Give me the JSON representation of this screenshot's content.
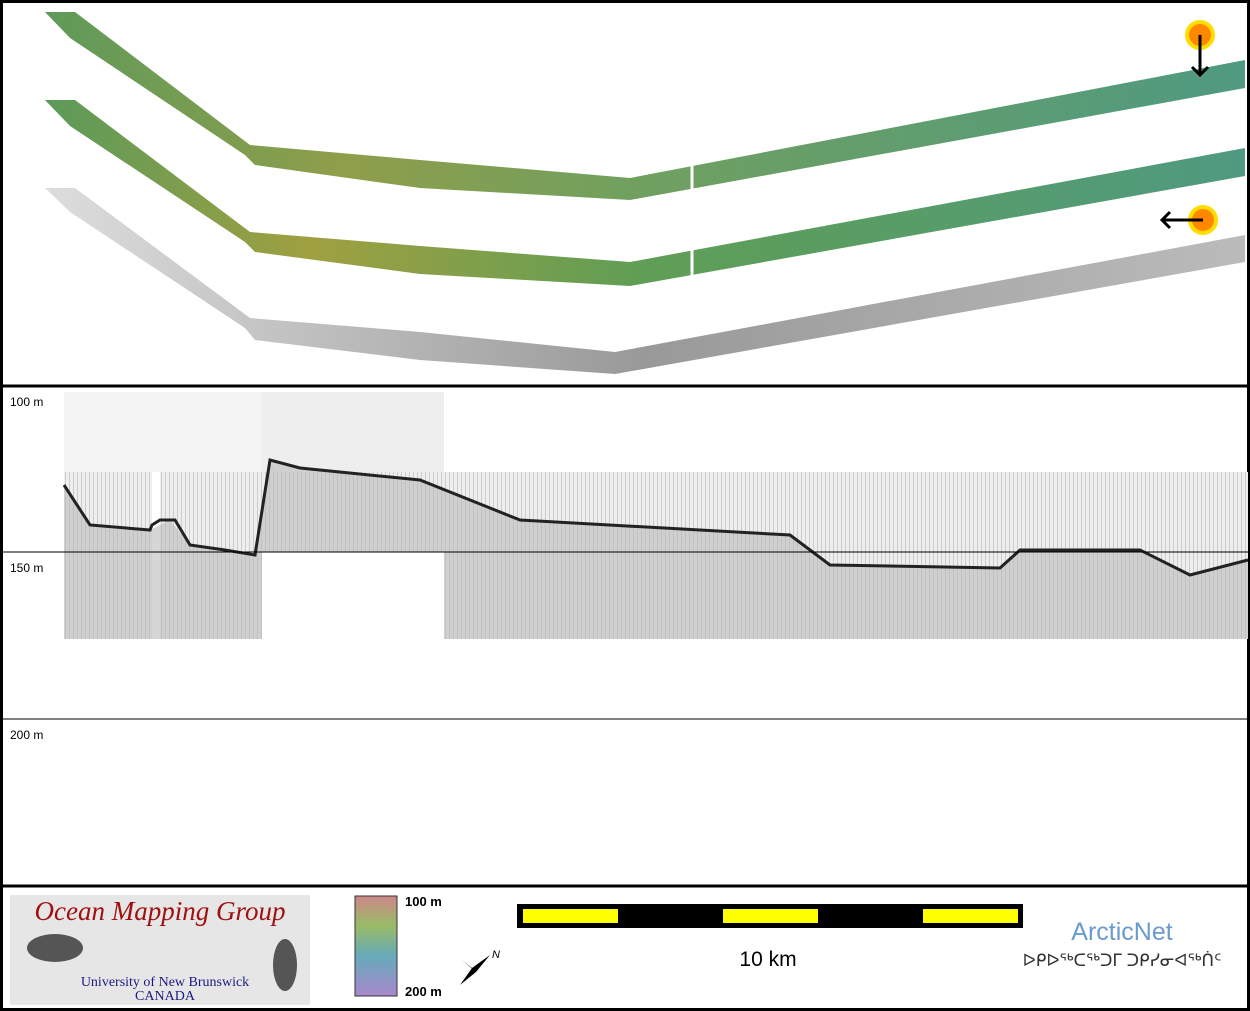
{
  "profile": {
    "depth_labels": [
      "100 m",
      "150 m",
      "200 m"
    ]
  },
  "footer": {
    "logo": {
      "title": "Ocean Mapping Group",
      "line1": "University of New Brunswick",
      "line2": "CANADA"
    },
    "colorbar": {
      "top": "100 m",
      "bottom": "200 m"
    },
    "compass": "N",
    "scale": "10 km",
    "partner": {
      "name": "ArcticNet",
      "syllabics": "ᐅᑭᐅᖅᑕᖅᑐᒥ ᑐᑭᓯᓂᐊᖅᑏᑦ"
    }
  }
}
